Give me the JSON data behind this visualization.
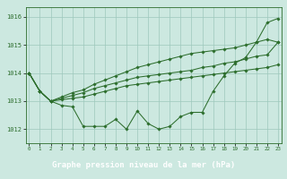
{
  "title": "Graphe pression niveau de la mer (hPa)",
  "hours": [
    0,
    1,
    2,
    3,
    4,
    5,
    6,
    7,
    8,
    9,
    10,
    11,
    12,
    13,
    14,
    15,
    16,
    17,
    18,
    19,
    20,
    21,
    22,
    23
  ],
  "series": {
    "line1": [
      1014.0,
      1013.35,
      1013.0,
      1012.85,
      1012.8,
      1012.1,
      1012.1,
      1012.1,
      1012.35,
      1012.0,
      1012.65,
      1012.2,
      1012.0,
      1012.1,
      1012.45,
      1012.6,
      1012.6,
      1013.35,
      1013.9,
      1014.35,
      1014.55,
      1015.1,
      1015.8,
      1015.95
    ],
    "line2": [
      1014.0,
      1013.35,
      1013.0,
      1013.05,
      1013.1,
      1013.15,
      1013.25,
      1013.35,
      1013.45,
      1013.55,
      1013.6,
      1013.65,
      1013.7,
      1013.75,
      1013.8,
      1013.85,
      1013.9,
      1013.95,
      1014.0,
      1014.05,
      1014.1,
      1014.15,
      1014.2,
      1014.3
    ],
    "line3": [
      1014.0,
      1013.35,
      1013.0,
      1013.1,
      1013.2,
      1013.3,
      1013.45,
      1013.55,
      1013.65,
      1013.75,
      1013.85,
      1013.9,
      1013.95,
      1014.0,
      1014.05,
      1014.1,
      1014.2,
      1014.25,
      1014.35,
      1014.4,
      1014.5,
      1014.6,
      1014.65,
      1015.1
    ],
    "line4": [
      1014.0,
      1013.35,
      1013.0,
      1013.15,
      1013.3,
      1013.4,
      1013.6,
      1013.75,
      1013.9,
      1014.05,
      1014.2,
      1014.3,
      1014.4,
      1014.5,
      1014.6,
      1014.7,
      1014.75,
      1014.8,
      1014.85,
      1014.9,
      1015.0,
      1015.1,
      1015.2,
      1015.1
    ]
  },
  "ylim": [
    1011.5,
    1016.35
  ],
  "yticks": [
    1012,
    1013,
    1014,
    1015,
    1016
  ],
  "xlim": [
    -0.3,
    23.3
  ],
  "line_color": "#2d6e2d",
  "bg_color": "#cce8e0",
  "grid_color": "#9dc8bc",
  "title_bg": "#2d6e2d",
  "title_color": "#ffffff"
}
